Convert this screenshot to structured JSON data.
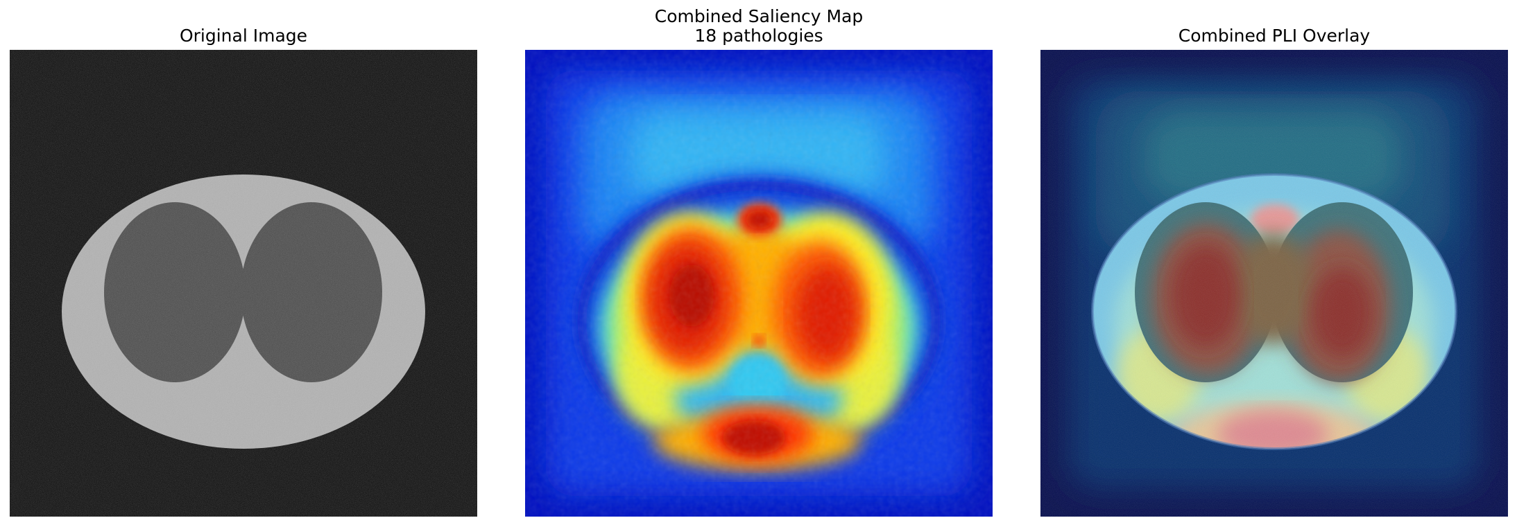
{
  "figure": {
    "panels": [
      {
        "id": "original",
        "title_lines": [
          "Original Image"
        ]
      },
      {
        "id": "saliency",
        "title_lines": [
          "Combined Saliency Map",
          "18 pathologies"
        ]
      },
      {
        "id": "overlay",
        "title_lines": [
          "Combined PLI Overlay"
        ]
      }
    ]
  },
  "colors": {
    "background": "#000000",
    "body_gray": "#b4b4b4",
    "lung_gray": "#484848",
    "saliency_low": "#0014c8",
    "saliency_mid": "#28c8f0",
    "saliency_high": "#c80a00"
  }
}
